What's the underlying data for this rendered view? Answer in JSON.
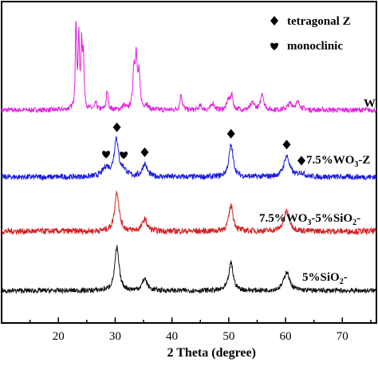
{
  "chart_data": {
    "type": "line",
    "xlabel": "2 Theta (degree)",
    "ylabel": "",
    "xlim": [
      10,
      76
    ],
    "xticks": [
      20,
      30,
      40,
      50,
      60,
      70
    ],
    "grid": false,
    "legend": {
      "placement": "top-right",
      "entries": [
        {
          "marker": "diamond",
          "label": "tetragonal Z"
        },
        {
          "marker": "heart",
          "label": "monoclinic"
        }
      ]
    },
    "series": [
      {
        "label_parts": [
          "W"
        ],
        "color": "#e020e0",
        "baseline": 0.8,
        "noise": 0.25,
        "peaks": [
          [
            23.1,
            8.6,
            0.14
          ],
          [
            23.6,
            7.0,
            0.14
          ],
          [
            24.1,
            6.0,
            0.16
          ],
          [
            24.4,
            5.0,
            0.14
          ],
          [
            26.6,
            0.7,
            0.2
          ],
          [
            28.6,
            1.8,
            0.2
          ],
          [
            31.5,
            0.4,
            0.3
          ],
          [
            33.3,
            3.8,
            0.22
          ],
          [
            33.7,
            4.8,
            0.2
          ],
          [
            34.2,
            3.4,
            0.22
          ],
          [
            35.5,
            0.5,
            0.3
          ],
          [
            41.6,
            1.6,
            0.22
          ],
          [
            45.0,
            0.4,
            0.3
          ],
          [
            47.2,
            0.7,
            0.3
          ],
          [
            49.9,
            1.0,
            0.25
          ],
          [
            50.5,
            1.6,
            0.25
          ],
          [
            54.2,
            0.7,
            0.4
          ],
          [
            55.9,
            1.7,
            0.3
          ],
          [
            60.8,
            0.6,
            0.5
          ],
          [
            62.2,
            0.7,
            0.5
          ]
        ]
      },
      {
        "label_parts": [
          "7.5%WO",
          "3",
          "-Z"
        ],
        "color": "#1a1adc",
        "baseline": 0.8,
        "noise": 0.28,
        "peaks": [
          [
            28.4,
            0.9,
            0.7
          ],
          [
            30.2,
            3.8,
            0.45
          ],
          [
            31.5,
            0.6,
            0.6
          ],
          [
            35.2,
            1.3,
            0.5
          ],
          [
            50.4,
            3.2,
            0.45
          ],
          [
            60.2,
            2.1,
            0.6
          ],
          [
            62.8,
            0.4,
            0.6
          ]
        ]
      },
      {
        "label_parts": [
          "7.5%WO",
          "3",
          "-5%SiO",
          "2",
          "-"
        ],
        "color": "#d42020",
        "baseline": 1.2,
        "noise": 0.3,
        "peaks": [
          [
            30.3,
            4.0,
            0.45
          ],
          [
            35.2,
            1.2,
            0.5
          ],
          [
            50.4,
            2.6,
            0.45
          ],
          [
            60.2,
            2.0,
            0.6
          ]
        ]
      },
      {
        "label_parts": [
          "5%SiO",
          "2",
          "-"
        ],
        "color": "#111111",
        "baseline": 0.6,
        "noise": 0.25,
        "peaks": [
          [
            30.3,
            4.3,
            0.45
          ],
          [
            35.2,
            1.2,
            0.5
          ],
          [
            50.4,
            2.8,
            0.45
          ],
          [
            60.2,
            1.9,
            0.6
          ]
        ]
      }
    ],
    "annotations": [
      {
        "marker": "diamond",
        "x": 30.3,
        "series": 1
      },
      {
        "marker": "heart",
        "x": 28.4,
        "series": 1
      },
      {
        "marker": "heart",
        "x": 31.5,
        "series": 1
      },
      {
        "marker": "diamond",
        "x": 35.2,
        "series": 1
      },
      {
        "marker": "diamond",
        "x": 50.4,
        "series": 1
      },
      {
        "marker": "diamond",
        "x": 60.2,
        "series": 1
      },
      {
        "marker": "diamond",
        "x": 62.8,
        "series": 1
      }
    ]
  }
}
